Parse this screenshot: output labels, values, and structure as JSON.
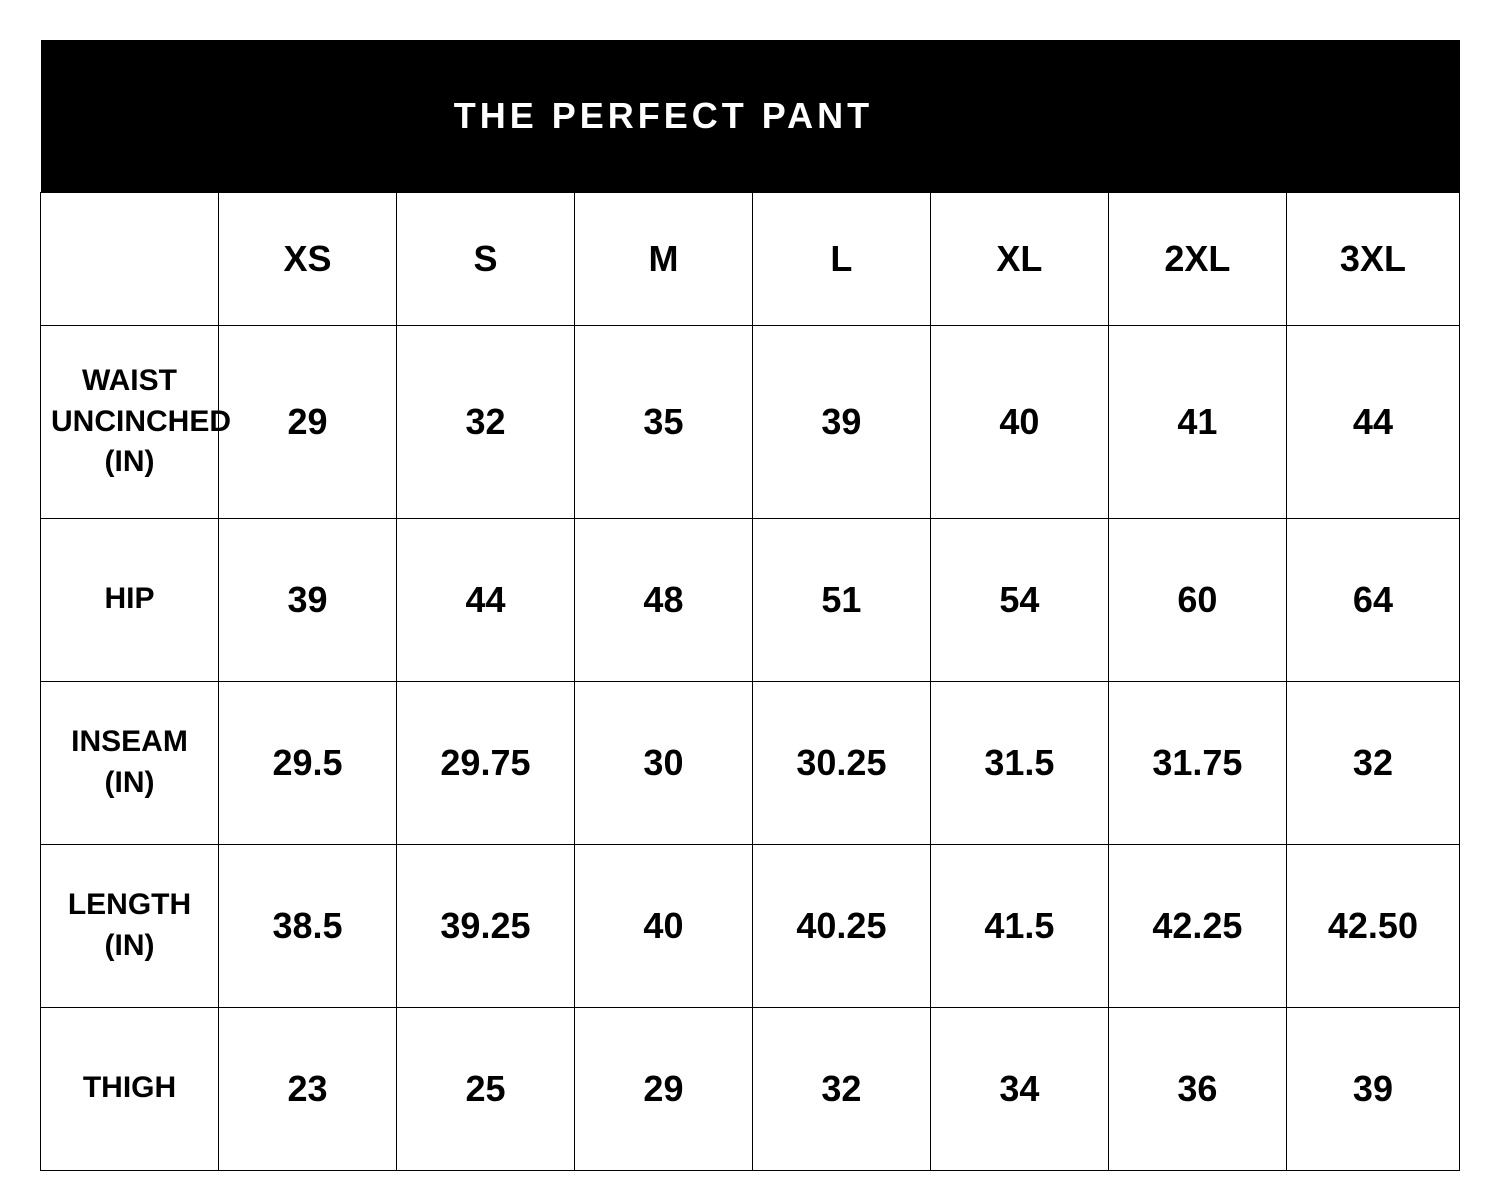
{
  "table": {
    "title": "THE PERFECT PANT",
    "title_bg": "#000000",
    "title_color": "#ffffff",
    "border_color": "#000000",
    "columns": [
      "XS",
      "S",
      "M",
      "L",
      "XL",
      "2XL",
      "3XL"
    ],
    "rows": [
      {
        "label": "WAIST UNCINCHED (IN)",
        "values": [
          "29",
          "32",
          "35",
          "39",
          "40",
          "41",
          "44"
        ]
      },
      {
        "label": "HIP",
        "values": [
          "39",
          "44",
          "48",
          "51",
          "54",
          "60",
          "64"
        ]
      },
      {
        "label": "INSEAM (IN)",
        "values": [
          "29.5",
          "29.75",
          "30",
          "30.25",
          "31.5",
          "31.75",
          "32"
        ]
      },
      {
        "label": "LENGTH (IN)",
        "values": [
          "38.5",
          "39.25",
          "40",
          "40.25",
          "41.5",
          "42.25",
          "42.50"
        ]
      },
      {
        "label": "THIGH",
        "values": [
          "23",
          "25",
          "29",
          "32",
          "34",
          "36",
          "39"
        ]
      }
    ],
    "fonts": {
      "title_size": 36,
      "header_size": 36,
      "label_size": 30,
      "data_size": 36
    }
  }
}
